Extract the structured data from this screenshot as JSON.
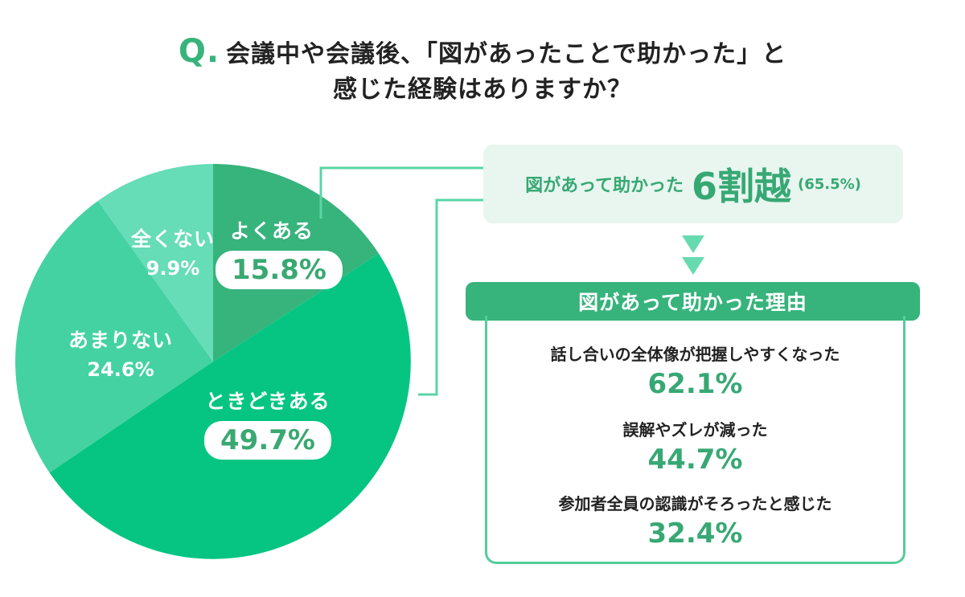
{
  "title": {
    "q_mark": "Q.",
    "line1": "会議中や会議後、「図があったことで助かった」と",
    "line2": "感じた経験はありますか？"
  },
  "colors": {
    "accent": "#37b37c",
    "slice_yoku": "#37b37c",
    "slice_tokidoki": "#06c582",
    "slice_amari": "#44d2a2",
    "slice_mattaku": "#66dcb7",
    "connector": "#59d5a6"
  },
  "chart_data": {
    "type": "pie",
    "categories": [
      "よくある",
      "ときどきある",
      "あまりない",
      "全くない"
    ],
    "values": [
      15.8,
      49.7,
      24.6,
      9.9
    ],
    "value_labels": [
      "15.8%",
      "49.7%",
      "24.6%",
      "9.9%"
    ],
    "title": "Q. 会議中や会議後、「図があったことで助かった」と感じた経験はありますか？"
  },
  "summary": {
    "text": "図があって助かった",
    "big": "6割越",
    "detail": "(65.5%)"
  },
  "reasons": {
    "header": "図があって助かった理由",
    "items": [
      {
        "label": "話し合いの全体像が把握しやすくなった",
        "value": "62.1%"
      },
      {
        "label": "誤解やズレが減った",
        "value": "44.7%"
      },
      {
        "label": "参加者全員の認識がそろったと感じた",
        "value": "32.4%"
      }
    ]
  }
}
